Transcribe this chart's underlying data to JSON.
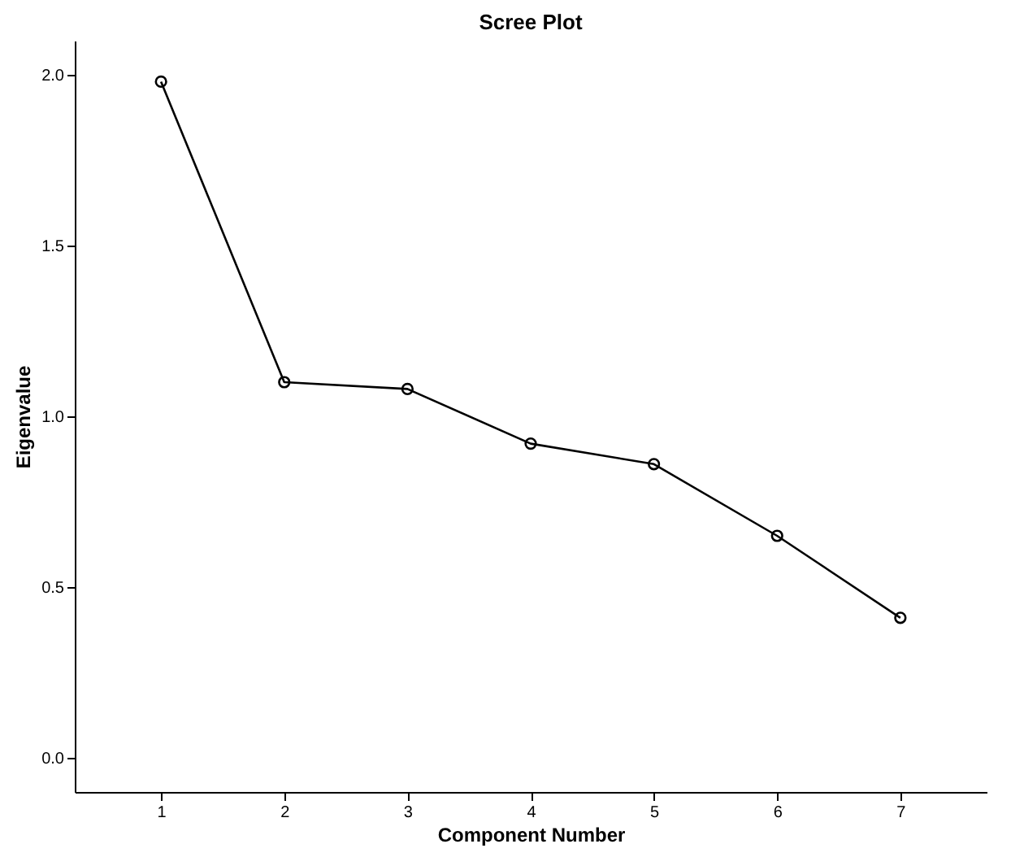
{
  "chart_data": {
    "type": "line",
    "title": "Scree Plot",
    "xlabel": "Component Number",
    "ylabel": "Eigenvalue",
    "categories": [
      "1",
      "2",
      "3",
      "4",
      "5",
      "6",
      "7"
    ],
    "series": [
      {
        "color": "#000000",
        "values": [
          1.98,
          1.1,
          1.08,
          0.92,
          0.86,
          0.65,
          0.41
        ]
      }
    ],
    "ylim": [
      -0.1,
      2.1
    ],
    "yticks": [
      {
        "value": 0,
        "label": "0.0"
      },
      0.5,
      {
        "value": 1,
        "label": "1.0"
      },
      1.5,
      {
        "value": 2,
        "label": "2.0"
      }
    ],
    "grid": false,
    "legend": false,
    "marker": "circle",
    "line_style": "solid"
  }
}
